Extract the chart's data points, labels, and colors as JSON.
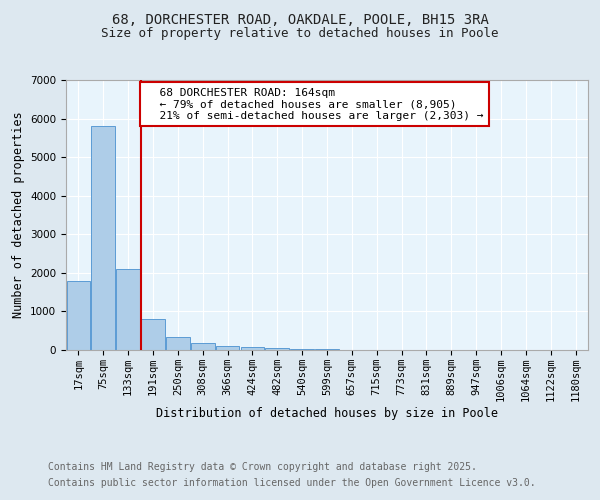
{
  "title1": "68, DORCHESTER ROAD, OAKDALE, POOLE, BH15 3RA",
  "title2": "Size of property relative to detached houses in Poole",
  "xlabel": "Distribution of detached houses by size in Poole",
  "ylabel": "Number of detached properties",
  "bar_labels": [
    "17sqm",
    "75sqm",
    "133sqm",
    "191sqm",
    "250sqm",
    "308sqm",
    "366sqm",
    "424sqm",
    "482sqm",
    "540sqm",
    "599sqm",
    "657sqm",
    "715sqm",
    "773sqm",
    "831sqm",
    "889sqm",
    "947sqm",
    "1006sqm",
    "1064sqm",
    "1122sqm",
    "1180sqm"
  ],
  "bar_values": [
    1800,
    5800,
    2100,
    800,
    330,
    190,
    110,
    70,
    50,
    30,
    20,
    10,
    8,
    5,
    4,
    3,
    2,
    2,
    1,
    1,
    1
  ],
  "bar_color": "#aecde8",
  "bar_edge_color": "#5b9bd5",
  "vline_color": "#cc0000",
  "annotation_text": "  68 DORCHESTER ROAD: 164sqm\n  ← 79% of detached houses are smaller (8,905)\n  21% of semi-detached houses are larger (2,303) →",
  "annotation_box_color": "#ffffff",
  "annotation_box_edge_color": "#cc0000",
  "background_color": "#dde8f0",
  "plot_bg_color": "#e8f4fc",
  "footer1": "Contains HM Land Registry data © Crown copyright and database right 2025.",
  "footer2": "Contains public sector information licensed under the Open Government Licence v3.0.",
  "ylim": [
    0,
    7000
  ],
  "title_fontsize": 10,
  "subtitle_fontsize": 9,
  "axis_label_fontsize": 8.5,
  "tick_fontsize": 7.5,
  "annotation_fontsize": 8,
  "footer_fontsize": 7
}
